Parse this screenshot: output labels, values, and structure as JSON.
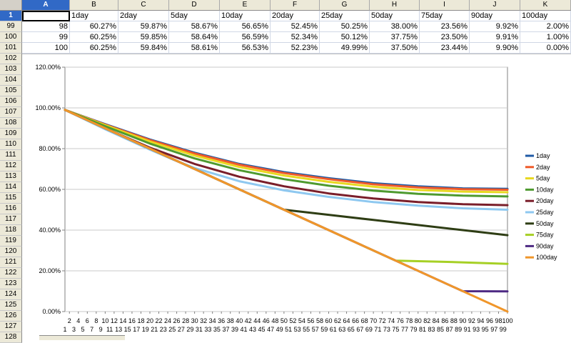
{
  "spreadsheet": {
    "columns": [
      "A",
      "B",
      "C",
      "D",
      "E",
      "F",
      "G",
      "H",
      "I",
      "J",
      "K"
    ],
    "selected_column": "A",
    "header_row": {
      "row_num": "1",
      "cells": [
        "",
        "1day",
        "2day",
        "5day",
        "10day",
        "20day",
        "25day",
        "50day",
        "75day",
        "90day",
        "100day"
      ]
    },
    "data_rows": [
      {
        "row_num": "99",
        "cells": [
          "98",
          "60.27%",
          "59.87%",
          "58.67%",
          "56.65%",
          "52.45%",
          "50.25%",
          "38.00%",
          "23.56%",
          "9.92%",
          "2.00%"
        ]
      },
      {
        "row_num": "100",
        "cells": [
          "99",
          "60.25%",
          "59.85%",
          "58.64%",
          "56.59%",
          "52.34%",
          "50.12%",
          "37.75%",
          "23.50%",
          "9.91%",
          "1.00%"
        ]
      },
      {
        "row_num": "101",
        "cells": [
          "100",
          "60.25%",
          "59.84%",
          "58.61%",
          "56.53%",
          "52.23%",
          "49.99%",
          "37.50%",
          "23.44%",
          "9.90%",
          "0.00%"
        ]
      }
    ],
    "chart_rows": [
      "102",
      "103",
      "104",
      "105",
      "106",
      "107",
      "108",
      "109",
      "110",
      "111",
      "112",
      "113",
      "114",
      "115",
      "116",
      "117",
      "118",
      "119",
      "120",
      "121",
      "122",
      "123",
      "124",
      "125",
      "126",
      "127",
      "128"
    ]
  },
  "chart_data": {
    "type": "line",
    "title": "",
    "xlabel": "",
    "ylabel": "",
    "ylim": [
      0,
      1.2
    ],
    "y_ticks": [
      "0.00%",
      "20.00%",
      "40.00%",
      "60.00%",
      "80.00%",
      "100.00%",
      "120.00%"
    ],
    "x_range": [
      1,
      100
    ],
    "x_ticks_top": [
      "2",
      "4",
      "6",
      "8",
      "10",
      "12",
      "14",
      "16",
      "18",
      "20",
      "22",
      "24",
      "26",
      "28",
      "30",
      "32",
      "34",
      "36",
      "38",
      "40",
      "42",
      "44",
      "46",
      "48",
      "50",
      "52",
      "54",
      "56",
      "58",
      "60",
      "62",
      "64",
      "66",
      "68",
      "70",
      "72",
      "74",
      "76",
      "78",
      "80",
      "82",
      "84",
      "86",
      "88",
      "90",
      "92",
      "94",
      "96",
      "98",
      "100"
    ],
    "x_ticks_bottom": [
      "1",
      "3",
      "5",
      "7",
      "9",
      "11",
      "13",
      "15",
      "17",
      "19",
      "21",
      "23",
      "25",
      "27",
      "29",
      "31",
      "33",
      "35",
      "37",
      "39",
      "41",
      "43",
      "45",
      "47",
      "49",
      "51",
      "53",
      "55",
      "57",
      "59",
      "61",
      "63",
      "65",
      "67",
      "69",
      "71",
      "73",
      "75",
      "77",
      "79",
      "81",
      "83",
      "85",
      "87",
      "89",
      "91",
      "93",
      "95",
      "97",
      "99"
    ],
    "grid": true,
    "legend_position": "right",
    "series": [
      {
        "name": "1day",
        "color": "#1f5aa6",
        "points": [
          [
            1,
            0.99
          ],
          [
            10,
            0.92
          ],
          [
            20,
            0.845
          ],
          [
            30,
            0.78
          ],
          [
            40,
            0.725
          ],
          [
            50,
            0.685
          ],
          [
            60,
            0.655
          ],
          [
            70,
            0.63
          ],
          [
            80,
            0.615
          ],
          [
            90,
            0.605
          ],
          [
            100,
            0.6025
          ]
        ]
      },
      {
        "name": "2day",
        "color": "#f05a28",
        "points": [
          [
            1,
            0.99
          ],
          [
            10,
            0.918
          ],
          [
            20,
            0.842
          ],
          [
            30,
            0.776
          ],
          [
            40,
            0.721
          ],
          [
            50,
            0.68
          ],
          [
            60,
            0.65
          ],
          [
            70,
            0.625
          ],
          [
            80,
            0.61
          ],
          [
            90,
            0.601
          ],
          [
            100,
            0.5984
          ]
        ]
      },
      {
        "name": "5day",
        "color": "#e8d820",
        "points": [
          [
            1,
            0.99
          ],
          [
            10,
            0.915
          ],
          [
            20,
            0.835
          ],
          [
            30,
            0.766
          ],
          [
            40,
            0.71
          ],
          [
            50,
            0.668
          ],
          [
            60,
            0.637
          ],
          [
            70,
            0.613
          ],
          [
            80,
            0.597
          ],
          [
            90,
            0.589
          ],
          [
            100,
            0.5861
          ]
        ]
      },
      {
        "name": "10day",
        "color": "#4e9a2f",
        "points": [
          [
            1,
            0.99
          ],
          [
            10,
            0.91
          ],
          [
            20,
            0.825
          ],
          [
            30,
            0.752
          ],
          [
            40,
            0.694
          ],
          [
            50,
            0.65
          ],
          [
            60,
            0.618
          ],
          [
            70,
            0.594
          ],
          [
            80,
            0.578
          ],
          [
            90,
            0.569
          ],
          [
            100,
            0.5653
          ]
        ]
      },
      {
        "name": "20day",
        "color": "#7a1e2a",
        "points": [
          [
            1,
            0.99
          ],
          [
            10,
            0.9
          ],
          [
            20,
            0.805
          ],
          [
            30,
            0.725
          ],
          [
            40,
            0.662
          ],
          [
            50,
            0.615
          ],
          [
            60,
            0.58
          ],
          [
            70,
            0.555
          ],
          [
            80,
            0.538
          ],
          [
            90,
            0.527
          ],
          [
            100,
            0.5223
          ]
        ]
      },
      {
        "name": "25day",
        "color": "#8ec8f0",
        "points": [
          [
            1,
            0.99
          ],
          [
            10,
            0.895
          ],
          [
            20,
            0.795
          ],
          [
            25,
            0.748
          ],
          [
            30,
            0.705
          ],
          [
            40,
            0.64
          ],
          [
            50,
            0.595
          ],
          [
            60,
            0.563
          ],
          [
            70,
            0.538
          ],
          [
            80,
            0.52
          ],
          [
            90,
            0.507
          ],
          [
            100,
            0.4999
          ]
        ]
      },
      {
        "name": "50day",
        "color": "#2e3d14",
        "points": [
          [
            1,
            0.99
          ],
          [
            50,
            0.5
          ],
          [
            60,
            0.475
          ],
          [
            70,
            0.45
          ],
          [
            80,
            0.425
          ],
          [
            90,
            0.4
          ],
          [
            100,
            0.375
          ]
        ]
      },
      {
        "name": "75day",
        "color": "#a6d025",
        "points": [
          [
            1,
            0.99
          ],
          [
            75,
            0.25
          ],
          [
            85,
            0.245
          ],
          [
            100,
            0.2344
          ]
        ]
      },
      {
        "name": "90day",
        "color": "#4e2a84",
        "points": [
          [
            1,
            0.99
          ],
          [
            90,
            0.1
          ],
          [
            100,
            0.099
          ]
        ]
      },
      {
        "name": "100day",
        "color": "#f0962a",
        "points": [
          [
            1,
            0.99
          ],
          [
            100,
            0.0
          ]
        ]
      }
    ]
  }
}
